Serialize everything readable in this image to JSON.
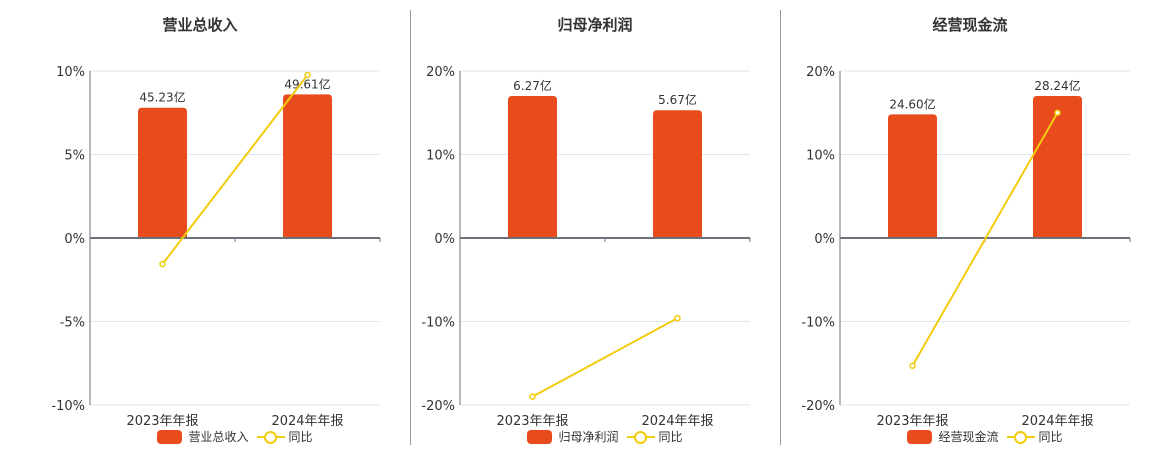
{
  "colors": {
    "bar": "#E84C1C",
    "line": "#F2CC0C",
    "grid": "#E0E6F0",
    "axis": "#6E7079",
    "text": "#333333"
  },
  "chart_data": [
    {
      "type": "bar+line",
      "title": "营业总收入",
      "categories": [
        "2023年年报",
        "2024年年报"
      ],
      "series": [
        {
          "name": "营业总收入",
          "type": "bar",
          "labels": [
            "45.23亿",
            "49.61亿"
          ],
          "values": [
            45.23,
            49.61
          ],
          "bar_height_pct": [
            7.8,
            8.6
          ]
        },
        {
          "name": "同比",
          "type": "line",
          "values": [
            -1.56,
            9.76
          ]
        }
      ],
      "yticks": [
        "10%",
        "5%",
        "0%",
        "-5%",
        "-10%"
      ],
      "ylim": [
        -10,
        10
      ],
      "grid": true,
      "legend_position": "bottom"
    },
    {
      "type": "bar+line",
      "title": "归母净利润",
      "categories": [
        "2023年年报",
        "2024年年报"
      ],
      "series": [
        {
          "name": "归母净利润",
          "type": "bar",
          "labels": [
            "6.27亿",
            "5.67亿"
          ],
          "values": [
            6.27,
            5.67
          ],
          "bar_height_pct": [
            17.0,
            15.3
          ]
        },
        {
          "name": "同比",
          "type": "line",
          "values": [
            -19.0,
            -9.6
          ]
        }
      ],
      "yticks": [
        "20%",
        "10%",
        "0%",
        "-10%",
        "-20%"
      ],
      "ylim": [
        -20,
        20
      ],
      "grid": true,
      "legend_position": "bottom"
    },
    {
      "type": "bar+line",
      "title": "经营现金流",
      "categories": [
        "2023年年报",
        "2024年年报"
      ],
      "series": [
        {
          "name": "经营现金流",
          "type": "bar",
          "labels": [
            "24.60亿",
            "28.24亿"
          ],
          "values": [
            24.6,
            28.24
          ],
          "bar_height_pct": [
            14.8,
            17.0
          ]
        },
        {
          "name": "同比",
          "type": "line",
          "values": [
            -15.3,
            15.0
          ]
        }
      ],
      "yticks": [
        "20%",
        "10%",
        "0%",
        "-10%",
        "-20%"
      ],
      "ylim": [
        -20,
        20
      ],
      "grid": true,
      "legend_position": "bottom"
    }
  ]
}
